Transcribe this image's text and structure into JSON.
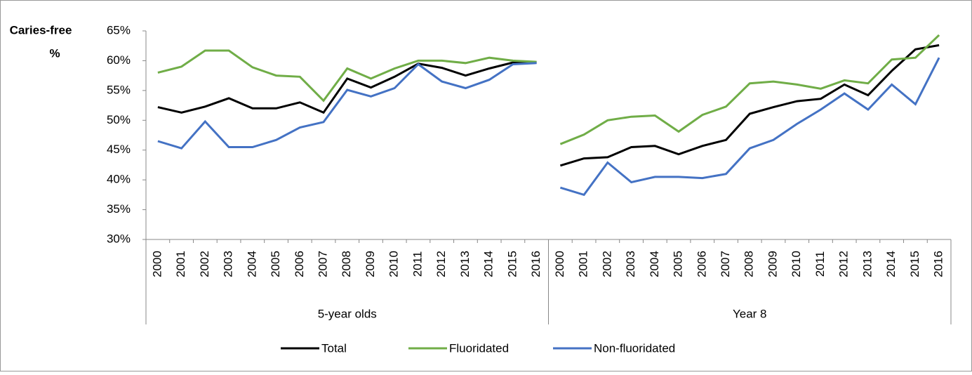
{
  "chart_data": {
    "type": "line",
    "y_label_lines": [
      "Caries-free",
      "%"
    ],
    "ylim": [
      30,
      65
    ],
    "yticks": [
      {
        "value": 30,
        "label": "30%"
      },
      {
        "value": 35,
        "label": "35%"
      },
      {
        "value": 40,
        "label": "40%"
      },
      {
        "value": 45,
        "label": "45%"
      },
      {
        "value": 50,
        "label": "50%"
      },
      {
        "value": 55,
        "label": "55%"
      },
      {
        "value": 60,
        "label": "60%"
      },
      {
        "value": 65,
        "label": "65%"
      }
    ],
    "groups": [
      {
        "name": "5-year olds",
        "categories": [
          "2000",
          "2001",
          "2002",
          "2003",
          "2004",
          "2005",
          "2006",
          "2007",
          "2008",
          "2009",
          "2010",
          "2011",
          "2012",
          "2013",
          "2014",
          "2015",
          "2016"
        ]
      },
      {
        "name": "Year 8",
        "categories": [
          "2000",
          "2001",
          "2002",
          "2003",
          "2004",
          "2005",
          "2006",
          "2007",
          "2008",
          "2009",
          "2010",
          "2011",
          "2012",
          "2013",
          "2014",
          "2015",
          "2016"
        ]
      }
    ],
    "series": [
      {
        "name": "Total",
        "color": "#000000",
        "values": [
          [
            52.2,
            51.3,
            52.3,
            53.7,
            52.0,
            52.0,
            53.0,
            51.3,
            57.0,
            55.5,
            57.3,
            59.5,
            58.8,
            57.5,
            58.7,
            59.7,
            59.7
          ],
          [
            42.4,
            43.6,
            43.8,
            45.5,
            45.7,
            44.3,
            45.7,
            46.7,
            51.1,
            52.2,
            53.2,
            53.6,
            56.0,
            54.2,
            58.3,
            61.9,
            62.6
          ]
        ]
      },
      {
        "name": "Fluoridated",
        "color": "#70ad47",
        "values": [
          [
            58.0,
            59.0,
            61.7,
            61.7,
            58.9,
            57.5,
            57.3,
            53.3,
            58.7,
            57.0,
            58.7,
            60.0,
            60.0,
            59.6,
            60.5,
            60.0,
            59.8
          ],
          [
            46.0,
            47.6,
            50.0,
            50.6,
            50.8,
            48.1,
            50.9,
            52.3,
            56.2,
            56.5,
            56.0,
            55.3,
            56.7,
            56.2,
            60.2,
            60.5,
            64.3
          ]
        ]
      },
      {
        "name": "Non-fluoridated",
        "color": "#4472c4",
        "values": [
          [
            46.5,
            45.3,
            49.8,
            45.5,
            45.5,
            46.7,
            48.8,
            49.7,
            55.1,
            54.0,
            55.4,
            59.4,
            56.5,
            55.4,
            56.8,
            59.4,
            59.6
          ],
          [
            38.7,
            37.5,
            42.9,
            39.6,
            40.5,
            40.5,
            40.3,
            41.0,
            45.3,
            46.7,
            49.4,
            51.8,
            54.5,
            51.8,
            56.0,
            52.7,
            60.5
          ]
        ]
      }
    ]
  }
}
